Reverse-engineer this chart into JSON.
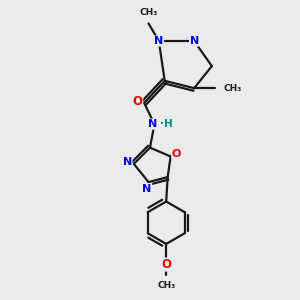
{
  "bg_color": "#ebebeb",
  "bond_color": "#1a1a1a",
  "N_color": "#0000ee",
  "O_color": "#ee0000",
  "H_color": "#008b8b",
  "lw": 1.6,
  "fig_w": 3.0,
  "fig_h": 3.0,
  "dpi": 100,
  "xlim": [
    0,
    10
  ],
  "ylim": [
    0,
    10
  ]
}
